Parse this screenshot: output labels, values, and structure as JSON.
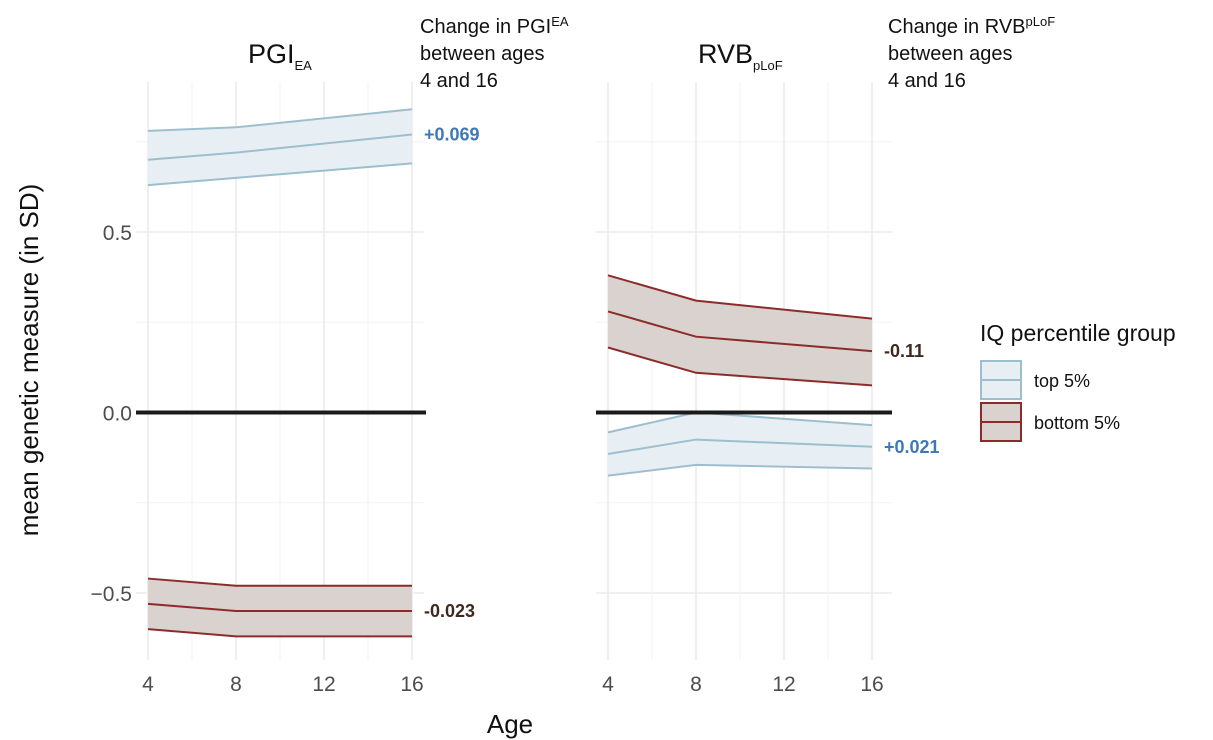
{
  "colors": {
    "top_line": "#9dbfcd",
    "top_fill": "#e7eff5",
    "bottom_line": "#8b2c2b",
    "bottom_fill": "#d9d2cf",
    "top_label": "#3d78b8",
    "bottom_label": "#3f2a22",
    "grid": "#ebebeb",
    "zero_line": "#1a1a1a"
  },
  "chart_data": {
    "type": "line",
    "xlabel": "Age",
    "ylabel": "mean genetic measure (in SD)",
    "x": [
      4,
      8,
      16
    ],
    "xticks": [
      "4",
      "8",
      "12",
      "16"
    ],
    "yticks": [
      "0.5",
      "0.0",
      "−0.5"
    ],
    "xlim": [
      4,
      16
    ],
    "ylim": [
      -0.66,
      0.88
    ],
    "legend": {
      "title": "IQ percentile group",
      "position": "right",
      "items": [
        "top 5%",
        "bottom 5%"
      ]
    },
    "panels": [
      {
        "title": "PGI",
        "title_sub": "EA",
        "note_line1_main": "Change in PGI",
        "note_line1_sub": "EA",
        "note_line2": "between ages",
        "note_line3": "4 and 16",
        "series": [
          {
            "name": "top 5%",
            "mean": [
              0.7,
              0.72,
              0.77
            ],
            "lower": [
              0.63,
              0.65,
              0.69
            ],
            "upper": [
              0.78,
              0.79,
              0.84
            ],
            "label": "+0.069"
          },
          {
            "name": "bottom 5%",
            "mean": [
              -0.53,
              -0.55,
              -0.55
            ],
            "lower": [
              -0.6,
              -0.62,
              -0.62
            ],
            "upper": [
              -0.46,
              -0.48,
              -0.48
            ],
            "label": "-0.023"
          }
        ]
      },
      {
        "title": "RVB",
        "title_sub": "pLoF",
        "note_line1_main": "Change in RVB",
        "note_line1_sub": "pLoF",
        "note_line2": "between ages",
        "note_line3": "4 and 16",
        "series": [
          {
            "name": "top 5%",
            "mean": [
              -0.115,
              -0.075,
              -0.095
            ],
            "lower": [
              -0.175,
              -0.145,
              -0.155
            ],
            "upper": [
              -0.055,
              0.0,
              -0.035
            ],
            "label": "+0.021"
          },
          {
            "name": "bottom 5%",
            "mean": [
              0.28,
              0.21,
              0.17
            ],
            "lower": [
              0.18,
              0.11,
              0.075
            ],
            "upper": [
              0.38,
              0.31,
              0.26
            ],
            "label": "-0.11"
          }
        ]
      }
    ]
  }
}
